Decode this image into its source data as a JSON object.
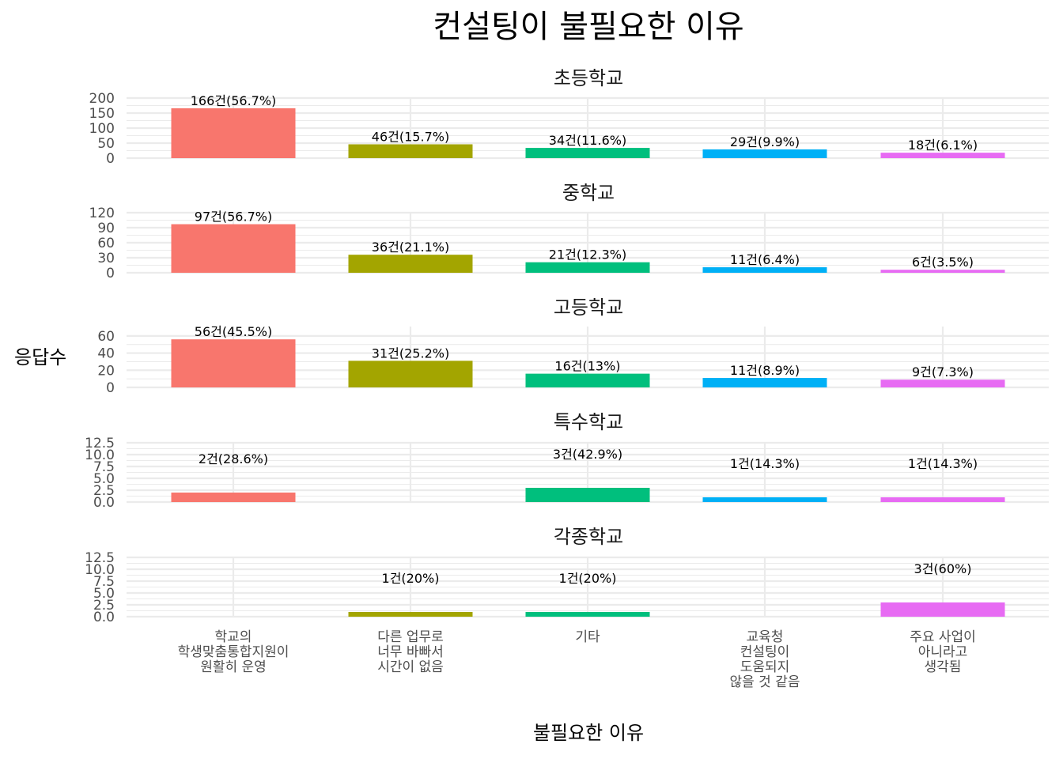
{
  "chart_data": {
    "type": "bar",
    "title": "컨설팅이 불필요한 이유",
    "xlabel": "불필요한 이유",
    "ylabel": "응답수",
    "categories": [
      [
        "학교의",
        "학생맞춤통합지원이",
        "원활히 운영"
      ],
      [
        "다른 업무로",
        "너무 바빠서",
        "시간이 없음"
      ],
      [
        "기타"
      ],
      [
        "교육청",
        "컨설팅이",
        "도움되지",
        "않을 것 같음"
      ],
      [
        "주요 사업이",
        "아니라고",
        "생각됨"
      ]
    ],
    "colors": [
      "#F8766D",
      "#A3A500",
      "#00BF7D",
      "#00B0F6",
      "#E76BF3"
    ],
    "grid": true,
    "legend": "none",
    "panels": [
      {
        "title": "초등학교",
        "ylim": [
          0,
          200
        ],
        "yticks": [
          "0",
          "50",
          "100",
          "150",
          "200"
        ],
        "ytick_values": [
          0,
          50,
          100,
          150,
          200
        ],
        "values": [
          166,
          46,
          34,
          29,
          18
        ],
        "labels": [
          "166건(56.7%)",
          "46건(15.7%)",
          "34건(11.6%)",
          "29건(9.9%)",
          "18건(6.1%)"
        ]
      },
      {
        "title": "중학교",
        "ylim": [
          0,
          120
        ],
        "yticks": [
          "0",
          "30",
          "60",
          "90",
          "120"
        ],
        "ytick_values": [
          0,
          30,
          60,
          90,
          120
        ],
        "values": [
          97,
          36,
          21,
          11,
          6
        ],
        "labels": [
          "97건(56.7%)",
          "36건(21.1%)",
          "21건(12.3%)",
          "11건(6.4%)",
          "6건(3.5%)"
        ]
      },
      {
        "title": "고등학교",
        "ylim": [
          0,
          70
        ],
        "yticks": [
          "0",
          "20",
          "40",
          "60"
        ],
        "ytick_values": [
          0,
          20,
          40,
          60
        ],
        "values": [
          56,
          31,
          16,
          11,
          9
        ],
        "labels": [
          "56건(45.5%)",
          "31건(25.2%)",
          "16건(13%)",
          "11건(8.9%)",
          "9건(7.3%)"
        ]
      },
      {
        "title": "특수학교",
        "ylim": [
          0,
          12.5
        ],
        "yticks": [
          "0.0",
          "2.5",
          "5.0",
          "7.5",
          "10.0",
          "12.5"
        ],
        "ytick_values": [
          0,
          2.5,
          5,
          7.5,
          10,
          12.5
        ],
        "values": [
          2,
          0,
          3,
          1,
          1
        ],
        "labels": [
          "2건(28.6%)",
          "",
          "3건(42.9%)",
          "1건(14.3%)",
          "1건(14.3%)"
        ]
      },
      {
        "title": "각종학교",
        "ylim": [
          0,
          12.5
        ],
        "yticks": [
          "0.0",
          "2.5",
          "5.0",
          "7.5",
          "10.0",
          "12.5"
        ],
        "ytick_values": [
          0,
          2.5,
          5,
          7.5,
          10,
          12.5
        ],
        "values": [
          0,
          1,
          1,
          0,
          3
        ],
        "labels": [
          "",
          "1건(20%)",
          "1건(20%)",
          "",
          "3건(60%)"
        ]
      }
    ]
  }
}
